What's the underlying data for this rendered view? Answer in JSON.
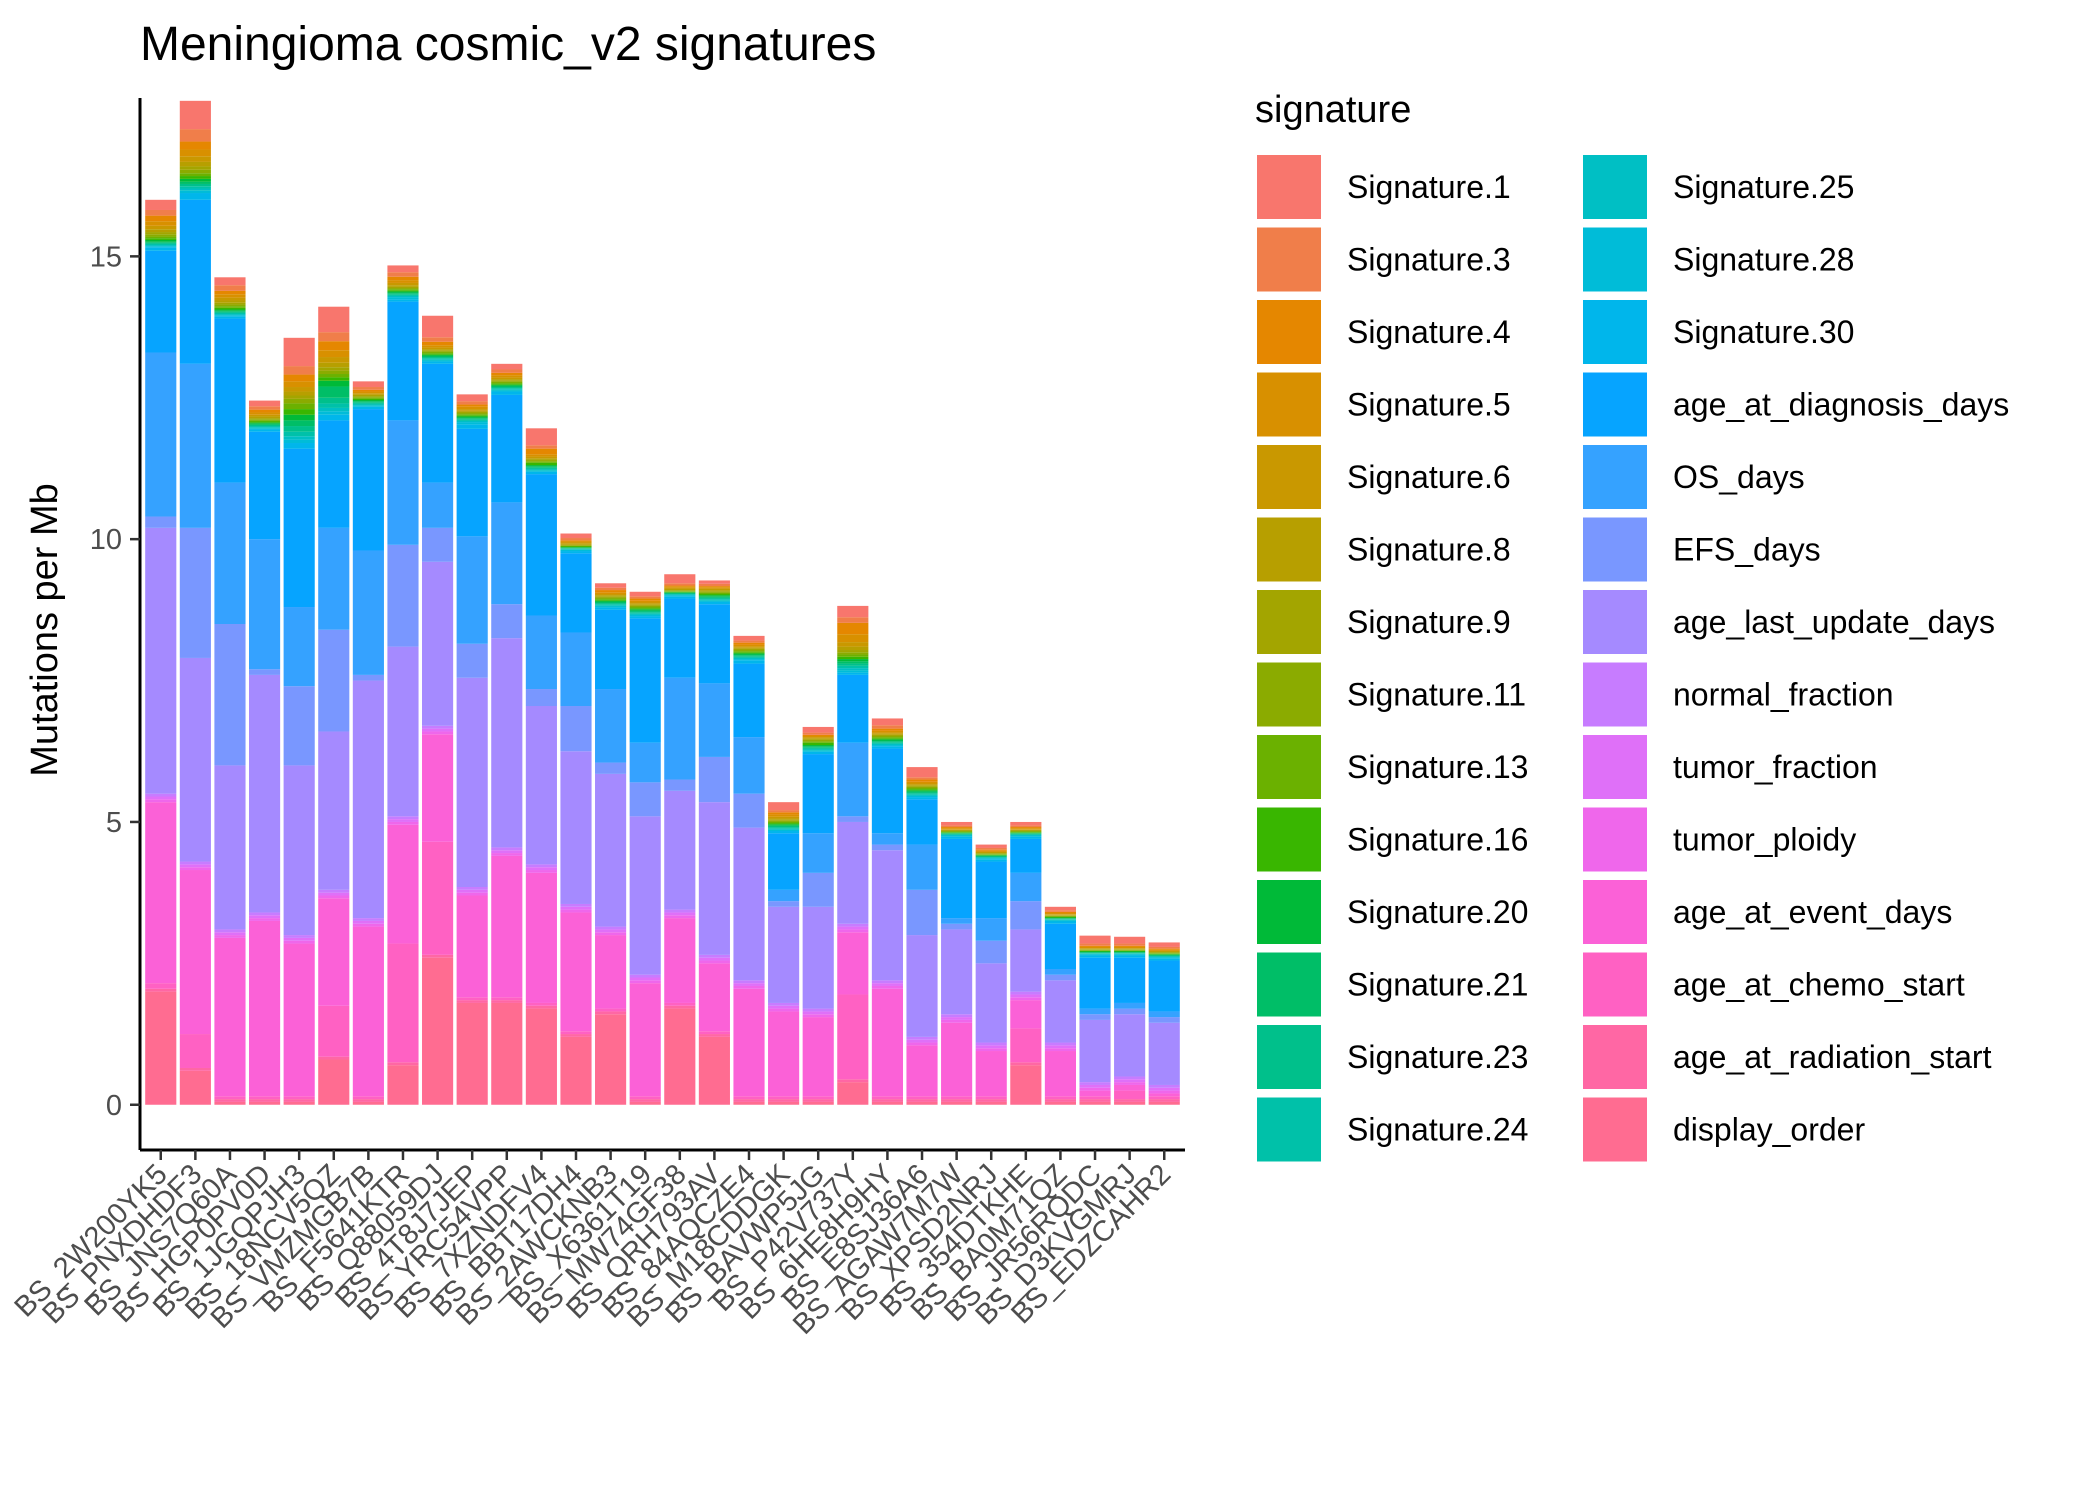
{
  "chart_data": {
    "type": "bar",
    "stacked": true,
    "title": "Meningioma cosmic_v2 signatures",
    "xlabel": "",
    "ylabel": "Mutations per Mb",
    "ylim": [
      -0.8,
      17.8
    ],
    "yticks": [
      0,
      5,
      10,
      15
    ],
    "legend": {
      "title": "signature",
      "position": "right",
      "columns": 2
    },
    "categories": [
      "BS_2W200YK5",
      "BS_PNXDHDF3",
      "BS_JNS7Q60A",
      "BS_HGP0PV0D",
      "BS_1JGQPJH3",
      "BS_18NCV5QZ",
      "BS_VMZMGB7B",
      "BS_F5641KTR",
      "BS_Q88059DJ",
      "BS_4T8J7JEP",
      "BS_YRC54VPP",
      "BS_7XZNDFV4",
      "BS_BBT17DH4",
      "BS_2AWCKNB3",
      "BS_X6361T19",
      "BS_MW74GF38",
      "BS_QRH793AV",
      "BS_84AQCZE4",
      "BS_M18CDDGK",
      "BS_BAVWP5JG",
      "BS_P42V737Y",
      "BS_6HE8H9HY",
      "BS_E8SJ36A6",
      "BS_AGAW7M7W",
      "BS_XPSD2NRJ",
      "BS_354DTKHE",
      "BS_BA0M71QZ",
      "BS_JR56RQDC",
      "BS_D3KVGMRJ",
      "BS_EDZCAHR2"
    ],
    "series": [
      {
        "name": "Signature.1",
        "color": "#F8766D",
        "values": [
          0.18,
          0.5,
          0.14,
          0.1,
          0.5,
          0.45,
          0.1,
          0.12,
          0.38,
          0.12,
          0.1,
          0.3,
          0.08,
          0.08,
          0.08,
          0.16,
          0.06,
          0.08,
          0.14,
          0.1,
          0.2,
          0.12,
          0.18,
          0.06,
          0.06,
          0.06,
          0.06,
          0.14,
          0.12,
          0.08
        ]
      },
      {
        "name": "Signature.3",
        "color": "#F07E4A",
        "values": [
          0.1,
          0.22,
          0.1,
          0.06,
          0.15,
          0.16,
          0.05,
          0.08,
          0.08,
          0.06,
          0.06,
          0.06,
          0.04,
          0.04,
          0.04,
          0.04,
          0.04,
          0.04,
          0.04,
          0.04,
          0.1,
          0.06,
          0.04,
          0.03,
          0.03,
          0.03,
          0.03,
          0.04,
          0.04,
          0.03
        ]
      },
      {
        "name": "Signature.4",
        "color": "#E58700",
        "values": [
          0.1,
          0.14,
          0.06,
          0.05,
          0.12,
          0.16,
          0.03,
          0.06,
          0.06,
          0.04,
          0.04,
          0.1,
          0.02,
          0.04,
          0.04,
          0.02,
          0.02,
          0.04,
          0.04,
          0.02,
          0.2,
          0.04,
          0.04,
          0.02,
          0.02,
          0.02,
          0.02,
          0.02,
          0.02,
          0.02
        ]
      },
      {
        "name": "Signature.5",
        "color": "#D89000",
        "values": [
          0.08,
          0.12,
          0.06,
          0.04,
          0.1,
          0.12,
          0.03,
          0.05,
          0.04,
          0.04,
          0.04,
          0.04,
          0.02,
          0.03,
          0.03,
          0.02,
          0.02,
          0.03,
          0.04,
          0.02,
          0.14,
          0.03,
          0.03,
          0.02,
          0.02,
          0.02,
          0.02,
          0.02,
          0.02,
          0.02
        ]
      },
      {
        "name": "Signature.6",
        "color": "#C99800",
        "values": [
          0.06,
          0.1,
          0.05,
          0.03,
          0.08,
          0.1,
          0.02,
          0.04,
          0.03,
          0.03,
          0.03,
          0.03,
          0.02,
          0.02,
          0.02,
          0.02,
          0.02,
          0.02,
          0.03,
          0.02,
          0.08,
          0.02,
          0.02,
          0.01,
          0.01,
          0.01,
          0.01,
          0.01,
          0.01,
          0.01
        ]
      },
      {
        "name": "Signature.8",
        "color": "#B79F00",
        "values": [
          0.05,
          0.08,
          0.04,
          0.03,
          0.07,
          0.08,
          0.02,
          0.03,
          0.02,
          0.02,
          0.02,
          0.02,
          0.02,
          0.02,
          0.02,
          0.02,
          0.02,
          0.02,
          0.02,
          0.02,
          0.06,
          0.02,
          0.02,
          0.01,
          0.01,
          0.01,
          0.01,
          0.01,
          0.01,
          0.01
        ]
      },
      {
        "name": "Signature.9",
        "color": "#A3A500",
        "values": [
          0.04,
          0.06,
          0.03,
          0.02,
          0.06,
          0.06,
          0.02,
          0.02,
          0.02,
          0.02,
          0.02,
          0.02,
          0.01,
          0.02,
          0.02,
          0.01,
          0.02,
          0.02,
          0.02,
          0.02,
          0.04,
          0.02,
          0.02,
          0.01,
          0.01,
          0.01,
          0.01,
          0.01,
          0.01,
          0.01
        ]
      },
      {
        "name": "Signature.11",
        "color": "#8BAB00",
        "values": [
          0.04,
          0.06,
          0.03,
          0.02,
          0.08,
          0.06,
          0.02,
          0.02,
          0.02,
          0.02,
          0.02,
          0.02,
          0.01,
          0.02,
          0.02,
          0.01,
          0.02,
          0.02,
          0.02,
          0.02,
          0.04,
          0.02,
          0.02,
          0.01,
          0.01,
          0.01,
          0.01,
          0.01,
          0.01,
          0.01
        ]
      },
      {
        "name": "Signature.13",
        "color": "#6BB100",
        "values": [
          0.03,
          0.05,
          0.03,
          0.02,
          0.1,
          0.06,
          0.02,
          0.02,
          0.02,
          0.02,
          0.02,
          0.02,
          0.01,
          0.02,
          0.02,
          0.01,
          0.02,
          0.02,
          0.02,
          0.02,
          0.04,
          0.02,
          0.02,
          0.01,
          0.01,
          0.01,
          0.01,
          0.01,
          0.01,
          0.01
        ]
      },
      {
        "name": "Signature.16",
        "color": "#39B600",
        "values": [
          0.03,
          0.05,
          0.03,
          0.02,
          0.1,
          0.06,
          0.02,
          0.02,
          0.02,
          0.02,
          0.02,
          0.04,
          0.01,
          0.02,
          0.02,
          0.01,
          0.02,
          0.02,
          0.02,
          0.04,
          0.04,
          0.02,
          0.02,
          0.01,
          0.01,
          0.01,
          0.01,
          0.01,
          0.01,
          0.01
        ]
      },
      {
        "name": "Signature.20",
        "color": "#00BA38",
        "values": [
          0.03,
          0.05,
          0.02,
          0.02,
          0.1,
          0.1,
          0.02,
          0.02,
          0.02,
          0.02,
          0.02,
          0.02,
          0.01,
          0.02,
          0.02,
          0.01,
          0.02,
          0.02,
          0.02,
          0.02,
          0.04,
          0.02,
          0.02,
          0.01,
          0.01,
          0.01,
          0.01,
          0.01,
          0.01,
          0.01
        ]
      },
      {
        "name": "Signature.21",
        "color": "#00BE67",
        "values": [
          0.02,
          0.04,
          0.02,
          0.02,
          0.1,
          0.2,
          0.02,
          0.02,
          0.02,
          0.02,
          0.02,
          0.02,
          0.01,
          0.02,
          0.02,
          0.01,
          0.02,
          0.02,
          0.02,
          0.02,
          0.04,
          0.02,
          0.02,
          0.01,
          0.01,
          0.01,
          0.01,
          0.01,
          0.01,
          0.01
        ]
      },
      {
        "name": "Signature.23",
        "color": "#00C08B",
        "values": [
          0.02,
          0.04,
          0.02,
          0.02,
          0.1,
          0.1,
          0.02,
          0.02,
          0.02,
          0.02,
          0.02,
          0.02,
          0.01,
          0.02,
          0.02,
          0.01,
          0.02,
          0.02,
          0.02,
          0.02,
          0.04,
          0.02,
          0.02,
          0.01,
          0.01,
          0.01,
          0.01,
          0.01,
          0.01,
          0.01
        ]
      },
      {
        "name": "Signature.24",
        "color": "#00C1A9",
        "values": [
          0.02,
          0.04,
          0.02,
          0.02,
          0.08,
          0.08,
          0.02,
          0.02,
          0.02,
          0.02,
          0.02,
          0.02,
          0.01,
          0.02,
          0.02,
          0.01,
          0.02,
          0.02,
          0.02,
          0.02,
          0.04,
          0.02,
          0.02,
          0.01,
          0.01,
          0.01,
          0.01,
          0.01,
          0.01,
          0.01
        ]
      },
      {
        "name": "Signature.25",
        "color": "#00BFC4",
        "values": [
          0.02,
          0.04,
          0.02,
          0.02,
          0.06,
          0.06,
          0.02,
          0.02,
          0.02,
          0.02,
          0.02,
          0.02,
          0.01,
          0.02,
          0.02,
          0.01,
          0.02,
          0.02,
          0.02,
          0.02,
          0.04,
          0.02,
          0.02,
          0.01,
          0.01,
          0.01,
          0.01,
          0.01,
          0.01,
          0.01
        ]
      },
      {
        "name": "Signature.28",
        "color": "#00BCD8",
        "values": [
          0.02,
          0.04,
          0.02,
          0.02,
          0.06,
          0.06,
          0.02,
          0.04,
          0.02,
          0.04,
          0.02,
          0.02,
          0.02,
          0.02,
          0.02,
          0.02,
          0.02,
          0.02,
          0.02,
          0.02,
          0.04,
          0.02,
          0.02,
          0.02,
          0.02,
          0.02,
          0.02,
          0.02,
          0.02,
          0.02
        ]
      },
      {
        "name": "Signature.30",
        "color": "#00B6EB",
        "values": [
          0.06,
          0.12,
          0.04,
          0.04,
          0.1,
          0.1,
          0.04,
          0.04,
          0.04,
          0.08,
          0.06,
          0.04,
          0.04,
          0.04,
          0.04,
          0.04,
          0.04,
          0.06,
          0.04,
          0.04,
          0.04,
          0.04,
          0.04,
          0.04,
          0.04,
          0.04,
          0.04,
          0.04,
          0.04,
          0.04
        ]
      },
      {
        "name": "age_at_diagnosis_days",
        "color": "#06A4FF",
        "values": [
          1.8,
          2.9,
          2.9,
          1.9,
          2.8,
          1.9,
          2.5,
          2.1,
          2.1,
          1.9,
          1.9,
          2.5,
          1.4,
          1.4,
          2.2,
          1.4,
          1.4,
          1.3,
          1.0,
          1.4,
          1.2,
          1.5,
          0.8,
          1.4,
          1.0,
          0.6,
          0.8,
          0.9,
          0.8,
          0.9
        ]
      },
      {
        "name": "OS_days",
        "color": "#35A2FF",
        "values": [
          2.9,
          2.9,
          2.5,
          2.3,
          1.4,
          1.8,
          2.2,
          2.2,
          0.8,
          1.9,
          1.8,
          1.3,
          1.3,
          1.3,
          0.7,
          1.8,
          1.3,
          1.0,
          0.2,
          0.7,
          1.3,
          0.2,
          0.8,
          0.1,
          0.4,
          0.5,
          0.1,
          0.1,
          0.1,
          0.1
        ]
      },
      {
        "name": "EFS_days",
        "color": "#7997FF",
        "values": [
          0.2,
          2.3,
          2.5,
          0.1,
          1.4,
          1.8,
          0.1,
          1.8,
          0.6,
          0.6,
          0.6,
          0.3,
          0.8,
          0.2,
          0.6,
          0.2,
          0.8,
          0.6,
          0.1,
          0.6,
          0.1,
          0.1,
          0.8,
          0.1,
          0.4,
          0.5,
          0.1,
          0.1,
          0.1,
          0.1
        ]
      },
      {
        "name": "age_last_update_days",
        "color": "#A58AFF",
        "values": [
          4.7,
          3.6,
          2.9,
          4.2,
          3.0,
          2.8,
          4.2,
          3.0,
          2.9,
          3.7,
          3.7,
          2.8,
          2.7,
          2.7,
          2.8,
          2.1,
          2.7,
          2.7,
          1.7,
          1.8,
          1.8,
          2.3,
          1.8,
          1.5,
          1.4,
          1.1,
          1.1,
          1.1,
          1.1,
          1.1
        ]
      },
      {
        "name": "normal_fraction",
        "color": "#C77CFF",
        "values": [
          0.05,
          0.05,
          0.05,
          0.05,
          0.05,
          0.05,
          0.05,
          0.05,
          0.05,
          0.05,
          0.05,
          0.05,
          0.05,
          0.05,
          0.05,
          0.05,
          0.05,
          0.05,
          0.05,
          0.05,
          0.05,
          0.05,
          0.05,
          0.05,
          0.05,
          0.05,
          0.05,
          0.05,
          0.05,
          0.05
        ]
      },
      {
        "name": "tumor_fraction",
        "color": "#DF70F8",
        "values": [
          0.05,
          0.05,
          0.05,
          0.05,
          0.05,
          0.05,
          0.05,
          0.05,
          0.05,
          0.05,
          0.05,
          0.05,
          0.05,
          0.05,
          0.05,
          0.05,
          0.05,
          0.05,
          0.05,
          0.05,
          0.05,
          0.05,
          0.05,
          0.05,
          0.05,
          0.05,
          0.05,
          0.05,
          0.05,
          0.05
        ]
      },
      {
        "name": "tumor_ploidy",
        "color": "#EF67EB",
        "values": [
          0.05,
          0.05,
          0.05,
          0.05,
          0.05,
          0.05,
          0.05,
          0.05,
          0.05,
          0.05,
          0.05,
          0.05,
          0.05,
          0.05,
          0.05,
          0.05,
          0.05,
          0.05,
          0.05,
          0.05,
          0.05,
          0.05,
          0.05,
          0.05,
          0.05,
          0.05,
          0.05,
          0.05,
          0.05,
          0.05
        ]
      },
      {
        "name": "age_at_event_days",
        "color": "#FB61D7",
        "values": [
          3.2,
          2.9,
          2.8,
          3.1,
          2.7,
          1.9,
          3.0,
          2.1,
          1.9,
          1.8,
          2.5,
          2.3,
          2.1,
          1.3,
          2.0,
          1.5,
          1.2,
          1.9,
          1.5,
          1.4,
          1.1,
          1.9,
          0.9,
          1.3,
          0.8,
          0.5,
          0.8,
          0.1,
          0.1,
          0.05
        ]
      },
      {
        "name": "age_at_chemo_start",
        "color": "#FF61C3",
        "values": [
          0.1,
          0.6,
          0.05,
          0.05,
          0.05,
          0.9,
          0.05,
          2.1,
          2.0,
          0.05,
          0.05,
          0.05,
          0.05,
          0.05,
          0.05,
          0.05,
          0.05,
          0.05,
          0.05,
          0.05,
          1.5,
          0.05,
          0.05,
          0.05,
          0.05,
          0.6,
          0.05,
          0.05,
          0.15,
          0.05
        ]
      },
      {
        "name": "age_at_radiation_start",
        "color": "#FF67A4",
        "values": [
          0.05,
          0.05,
          0.05,
          0.05,
          0.05,
          0.05,
          0.05,
          0.05,
          0.05,
          0.05,
          0.05,
          0.05,
          0.05,
          0.05,
          0.05,
          0.05,
          0.05,
          0.05,
          0.05,
          0.05,
          0.05,
          0.05,
          0.05,
          0.05,
          0.05,
          0.05,
          0.05,
          0.05,
          0.05,
          0.05
        ]
      },
      {
        "name": "display_order",
        "color": "#FF6C91",
        "values": [
          2.0,
          0.6,
          0.05,
          0.05,
          0.05,
          0.8,
          0.05,
          0.7,
          2.6,
          1.8,
          1.8,
          1.7,
          1.2,
          1.6,
          0.05,
          1.7,
          1.2,
          0.05,
          0.05,
          0.05,
          0.4,
          0.05,
          0.05,
          0.05,
          0.05,
          0.7,
          0.05,
          0.05,
          0.05,
          0.05
        ]
      }
    ]
  }
}
